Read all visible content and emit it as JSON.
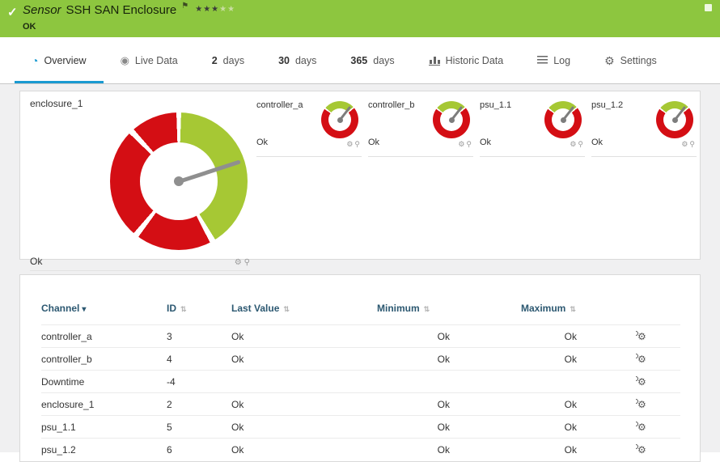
{
  "header": {
    "type_label": "Sensor",
    "title": "SSH SAN Enclosure",
    "status": "OK",
    "stars": {
      "filled": 3,
      "total": 5
    }
  },
  "tabs": {
    "items": [
      {
        "id": "overview",
        "label": "Overview",
        "active": true
      },
      {
        "id": "live-data",
        "label": "Live Data",
        "active": false
      },
      {
        "id": "2-days",
        "number": "2",
        "label": "days",
        "active": false
      },
      {
        "id": "30-days",
        "number": "30",
        "label": "days",
        "active": false
      },
      {
        "id": "365-days",
        "number": "365",
        "label": "days",
        "active": false
      },
      {
        "id": "historic-data",
        "label": "Historic Data",
        "active": false
      },
      {
        "id": "log",
        "label": "Log",
        "active": false
      },
      {
        "id": "settings",
        "label": "Settings",
        "active": false
      }
    ]
  },
  "gauges": {
    "primary": {
      "name": "enclosure_1",
      "status": "Ok"
    },
    "small": [
      {
        "name": "controller_a",
        "status": "Ok"
      },
      {
        "name": "controller_b",
        "status": "Ok"
      },
      {
        "name": "psu_1.1",
        "status": "Ok"
      },
      {
        "name": "psu_1.2",
        "status": "Ok"
      }
    ]
  },
  "table": {
    "columns": [
      {
        "key": "channel",
        "label": "Channel",
        "sorted": true
      },
      {
        "key": "id",
        "label": "ID"
      },
      {
        "key": "last",
        "label": "Last Value"
      },
      {
        "key": "min",
        "label": "Minimum"
      },
      {
        "key": "max",
        "label": "Maximum"
      }
    ],
    "rows": [
      {
        "channel": "controller_a",
        "id": "3",
        "last": "Ok",
        "min": "Ok",
        "max": "Ok"
      },
      {
        "channel": "controller_b",
        "id": "4",
        "last": "Ok",
        "min": "Ok",
        "max": "Ok"
      },
      {
        "channel": "Downtime",
        "id": "-4",
        "last": "",
        "min": "",
        "max": ""
      },
      {
        "channel": "enclosure_1",
        "id": "2",
        "last": "Ok",
        "min": "Ok",
        "max": "Ok"
      },
      {
        "channel": "psu_1.1",
        "id": "5",
        "last": "Ok",
        "min": "Ok",
        "max": "Ok"
      },
      {
        "channel": "psu_1.2",
        "id": "6",
        "last": "Ok",
        "min": "Ok",
        "max": "Ok"
      }
    ]
  },
  "icons": {
    "check": "✓",
    "flag": "⚑",
    "star": "★",
    "sort_active": "▾",
    "sort": "⇅",
    "gear": "⚙",
    "pin": "⚲",
    "channel_settings": "⚙",
    "overview": "◔",
    "live": "◉"
  },
  "colors": {
    "header_green": "#8dc63f",
    "accent_blue": "#1a9ad1",
    "gauge_green": "#a6c834",
    "gauge_red": "#d40e14",
    "table_header_text": "#2c5871"
  }
}
